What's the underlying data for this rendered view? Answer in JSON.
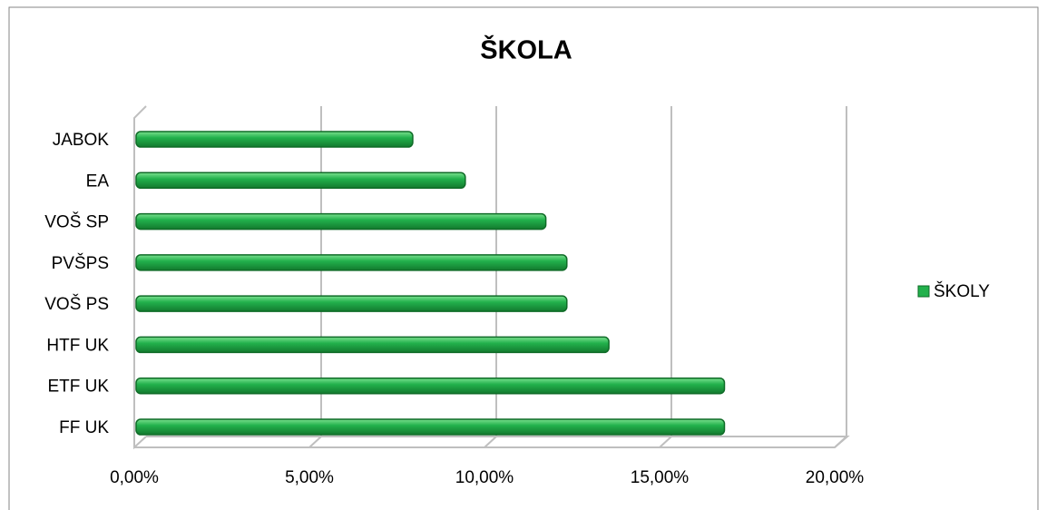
{
  "chart_data": {
    "type": "bar",
    "title": "ŠKOLA",
    "categories": [
      "JABOK",
      "EA",
      "VOŠ SP",
      "PVŠPS",
      "VOŠ PS",
      "HTF UK",
      "ETF UK",
      "FF UK"
    ],
    "series": [
      {
        "name": "ŠKOLY",
        "color": "#22b14c",
        "values": [
          7.9,
          9.4,
          11.7,
          12.3,
          12.3,
          13.5,
          16.8,
          16.8
        ]
      }
    ],
    "xlim": [
      0,
      20
    ],
    "xticks": [
      {
        "value": 0,
        "label": "0,00%"
      },
      {
        "value": 5,
        "label": "5,00%"
      },
      {
        "value": 10,
        "label": "10,00%"
      },
      {
        "value": 15,
        "label": "15,00%"
      },
      {
        "value": 20,
        "label": "20,00%"
      }
    ],
    "grid": true,
    "legend": "right"
  }
}
